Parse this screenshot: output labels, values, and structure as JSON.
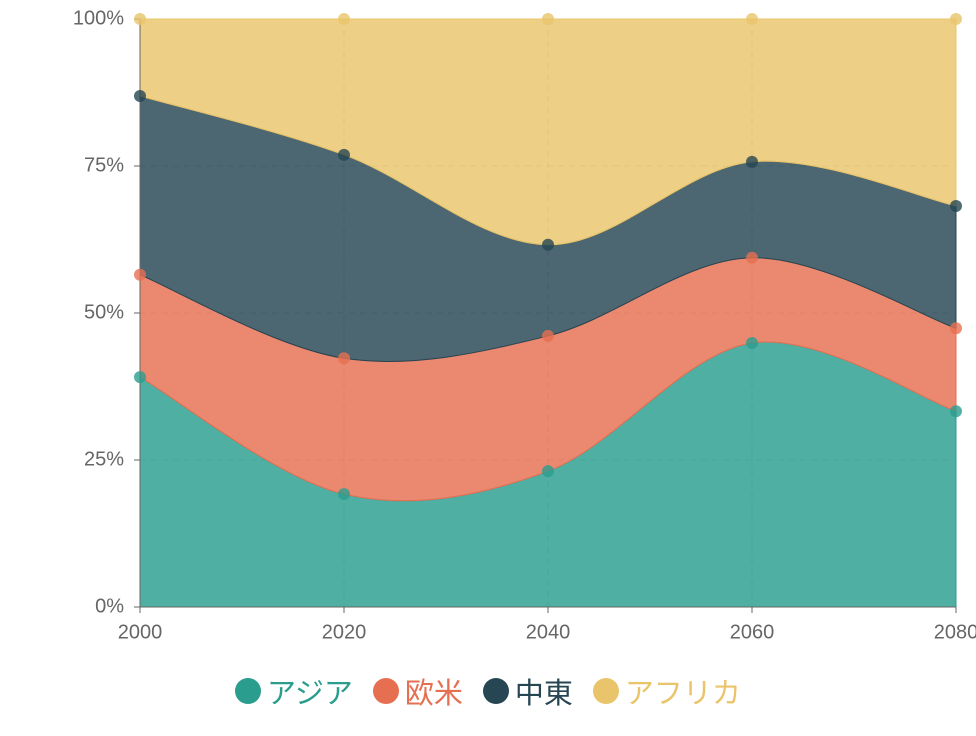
{
  "chart_data": {
    "type": "stacked-area",
    "x": [
      2000,
      2020,
      2040,
      2060,
      2080
    ],
    "xlim": [
      2000,
      2080
    ],
    "xticks": [
      2000,
      2020,
      2040,
      2060,
      2080
    ],
    "ylim": [
      0,
      100
    ],
    "yticks": [
      {
        "value": 0,
        "label": "0%"
      },
      {
        "value": 25,
        "label": "25%"
      },
      {
        "value": 50,
        "label": "50%"
      },
      {
        "value": 75,
        "label": "75%"
      },
      {
        "value": 100,
        "label": "100%"
      }
    ],
    "grid": true,
    "legend": "bottom",
    "series": [
      {
        "name": "アジア",
        "color": "#2a9d8f",
        "values": [
          39.1,
          19.2,
          23.1,
          44.9,
          33.3
        ]
      },
      {
        "name": "欧米",
        "color": "#e76f51",
        "values": [
          17.4,
          23.1,
          23.0,
          14.5,
          14.1
        ]
      },
      {
        "name": "中東",
        "color": "#264653",
        "values": [
          30.4,
          34.6,
          15.5,
          16.3,
          20.8
        ]
      },
      {
        "name": "アフリカ",
        "color": "#e9c46a",
        "values": [
          13.1,
          23.1,
          38.4,
          24.3,
          31.8
        ]
      }
    ]
  }
}
